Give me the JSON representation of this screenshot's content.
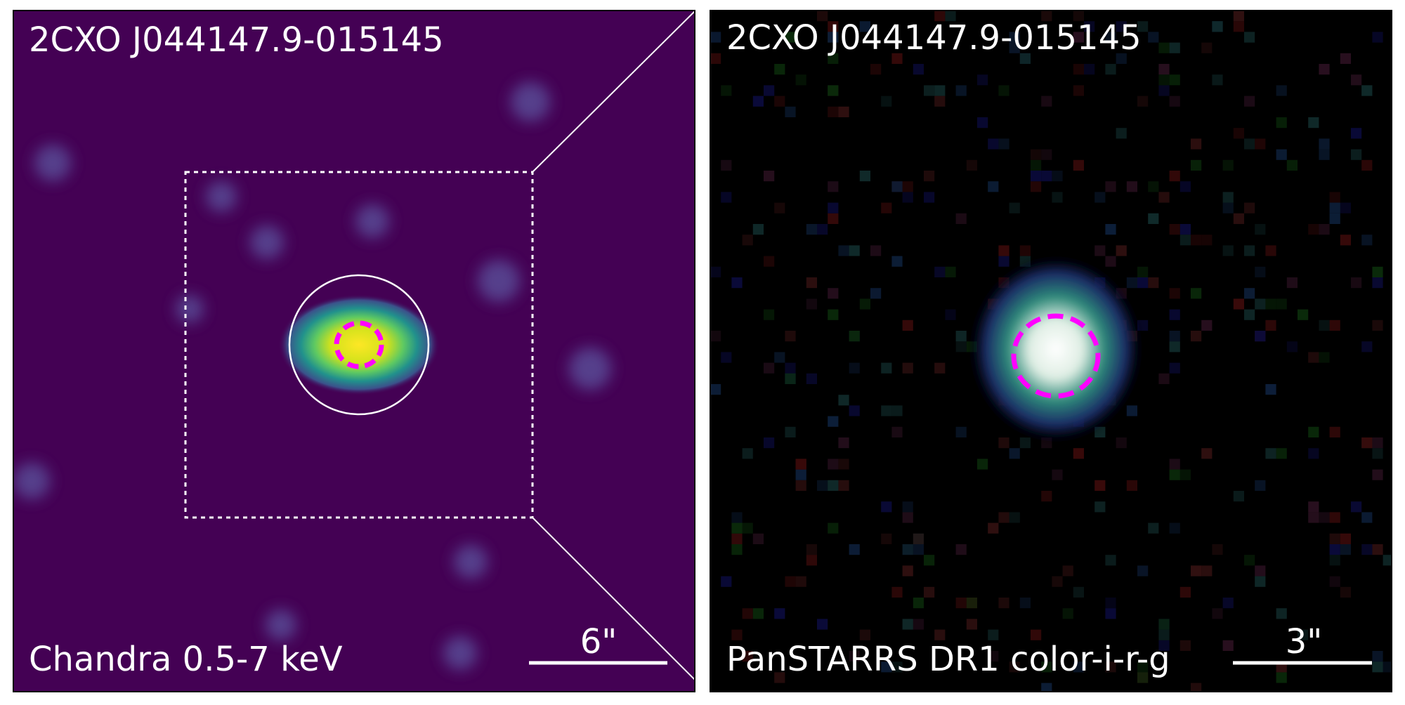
{
  "panels": [
    {
      "title": "2CXO J044147.9-015145",
      "caption": "Chandra 0.5-7 keV",
      "scale_label": "6\""
    },
    {
      "title": "2CXO J044147.9-015145",
      "caption": "PanSTARRS DR1 color-i-r-g",
      "scale_label": "3\""
    }
  ]
}
